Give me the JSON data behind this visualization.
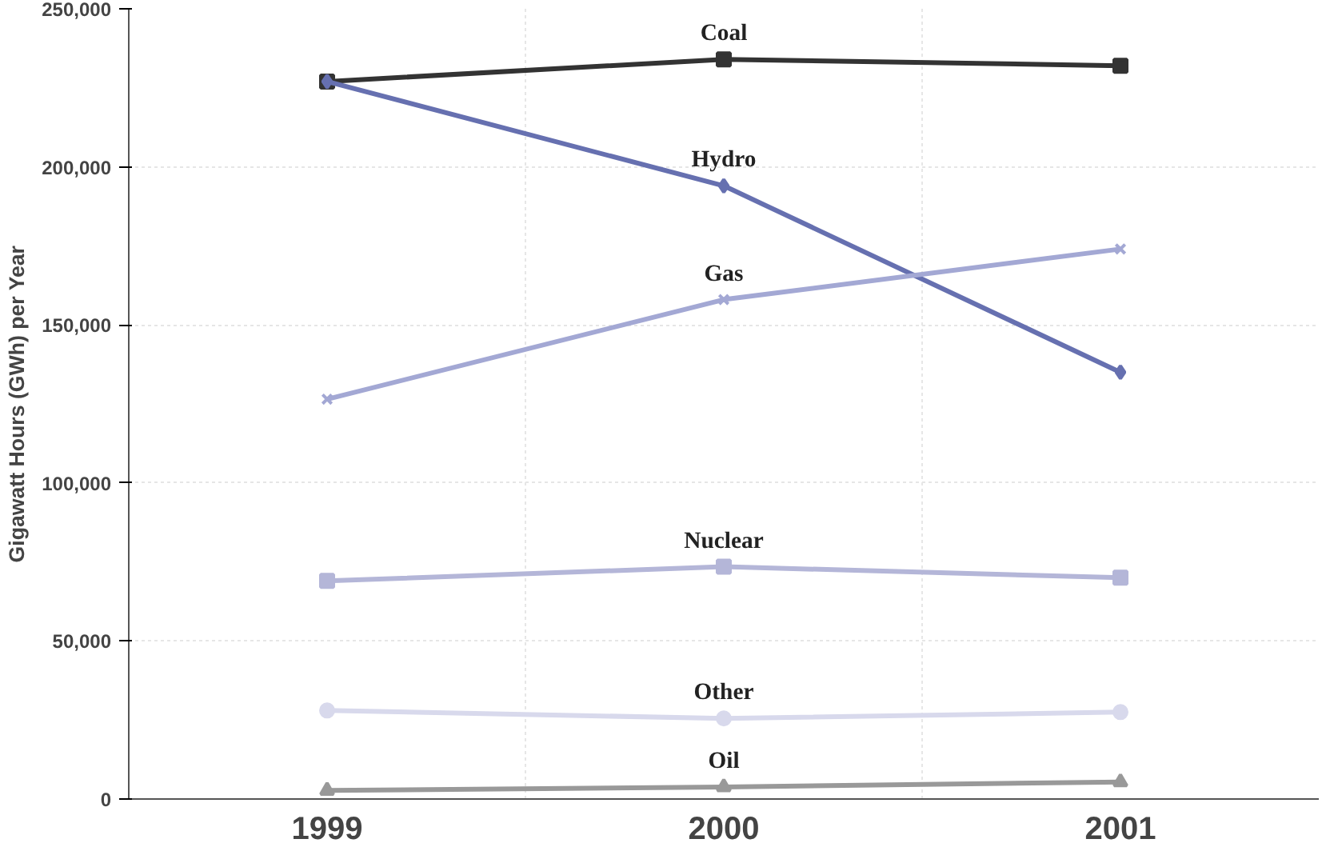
{
  "chart_data": {
    "type": "line",
    "ylabel": "Gigawatt Hours (GWh) per Year",
    "categories": [
      "1999",
      "2000",
      "2001"
    ],
    "series": [
      {
        "name": "Coal",
        "color": "#333333",
        "marker": "square",
        "values": [
          227000,
          234000,
          232000
        ]
      },
      {
        "name": "Hydro",
        "color": "#6670b0",
        "marker": "diamond",
        "values": [
          227000,
          194000,
          135000
        ]
      },
      {
        "name": "Gas",
        "color": "#a3a8d4",
        "marker": "cross",
        "values": [
          126500,
          158000,
          174000
        ]
      },
      {
        "name": "Nuclear",
        "color": "#b4b6d8",
        "marker": "square",
        "values": [
          69000,
          73500,
          70000
        ]
      },
      {
        "name": "Other",
        "color": "#d8d9ec",
        "marker": "circle",
        "values": [
          28000,
          25500,
          27500
        ]
      },
      {
        "name": "Oil",
        "color": "#999999",
        "marker": "triangle",
        "values": [
          2700,
          3800,
          5400
        ]
      }
    ],
    "ylim": [
      0,
      250000
    ],
    "yticks": [
      {
        "value": 0,
        "label": "0"
      },
      {
        "value": 50000,
        "label": "50,000"
      },
      {
        "value": 100000,
        "label": "100,000"
      },
      {
        "value": 150000,
        "label": "150,000"
      },
      {
        "value": 200000,
        "label": "200,000"
      },
      {
        "value": 250000,
        "label": "250,000"
      }
    ],
    "grid": true,
    "line_style": "solid"
  }
}
